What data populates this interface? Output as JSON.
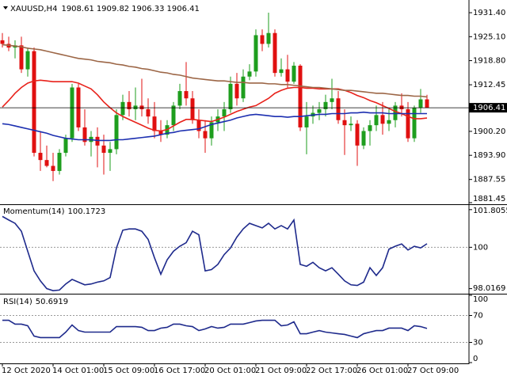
{
  "chart_data": [
    {
      "type": "candlestick",
      "header": {
        "symbol": "XAUUSD,H4",
        "values": [
          1908.61,
          1909.82,
          1906.33,
          1906.41
        ]
      },
      "x": [
        "12 Oct 2020",
        null,
        null,
        null,
        null,
        null,
        null,
        null,
        "14 Oct 01:00",
        null,
        null,
        null,
        null,
        null,
        null,
        null,
        "15 Oct 09:00",
        null,
        null,
        null,
        null,
        null,
        null,
        null,
        "16 Oct 17:00",
        null,
        null,
        null,
        null,
        null,
        null,
        null,
        "20 Oct 01:00",
        null,
        null,
        null,
        null,
        null,
        null,
        null,
        "21 Oct 09:00",
        null,
        null,
        null,
        null,
        null,
        null,
        null,
        "22 Oct 17:00",
        null,
        null,
        null,
        null,
        null,
        null,
        null,
        "26 Oct 01:00",
        null,
        null,
        null,
        null,
        null,
        null,
        null,
        "27 Oct 09:00",
        null,
        null,
        null
      ],
      "open": [
        1924.15,
        1923.2,
        1922.24,
        1922.81,
        1916.51,
        1921.29,
        1894.56,
        1892.66,
        1891.12,
        1889.79,
        1894.56,
        1898.38,
        1911.74,
        1901.24,
        1897.42,
        1898.76,
        1896.47,
        1894.56,
        1895.52,
        1904.49,
        1907.92,
        1906.02,
        1906.97,
        1906.02,
        1904.11,
        1900.29,
        1899.33,
        1901.82,
        1906.97,
        1910.79,
        1908.88,
        1903.15,
        1900.29,
        1898.38,
        1902.58,
        1904.11,
        1906.02,
        1912.7,
        1908.88,
        1914.6,
        1915.94,
        1925.49,
        1923.2,
        1926.06,
        1915.56,
        1916.51,
        1913.27,
        1917.47,
        1901.24,
        1904.11,
        1905.06,
        1906.02,
        1907.92,
        1908.88,
        1903.15,
        1901.82,
        1902.2,
        1896.47,
        1900.29,
        1901.82,
        1904.49,
        1902.2,
        1903.15,
        1906.97,
        1906.02,
        1898.38,
        1906.4,
        1908.61
      ],
      "high": [
        1926.06,
        1925.1,
        1924.15,
        1925.1,
        1922.24,
        1922.24,
        1900.29,
        1896.47,
        1894.56,
        1895.52,
        1899.33,
        1912.7,
        1912.7,
        1906.02,
        1900.29,
        1901.24,
        1899.33,
        1897.42,
        1906.02,
        1909.83,
        1910.79,
        1911.74,
        1914.03,
        1908.88,
        1907.92,
        1903.15,
        1903.15,
        1907.92,
        1912.7,
        1918.42,
        1910.79,
        1906.02,
        1903.15,
        1904.11,
        1906.02,
        1907.92,
        1914.6,
        1915.56,
        1916.51,
        1917.85,
        1927.01,
        1927.01,
        1931.4,
        1927.01,
        1919.38,
        1920.33,
        1918.42,
        1917.85,
        1907.92,
        1906.97,
        1907.92,
        1909.83,
        1914.03,
        1910.79,
        1906.02,
        1904.11,
        1903.15,
        1901.24,
        1903.15,
        1906.97,
        1907.92,
        1906.02,
        1907.92,
        1910.21,
        1907.92,
        1906.97,
        1911.36,
        1909.82
      ],
      "low": [
        1922.24,
        1921.29,
        1919.38,
        1915.56,
        1914.6,
        1893.61,
        1889.79,
        1890.75,
        1887.12,
        1888.84,
        1893.61,
        1897.42,
        1900.29,
        1896.47,
        1893.61,
        1890.75,
        1888.84,
        1889.79,
        1894.18,
        1903.15,
        1904.11,
        1903.15,
        1904.11,
        1902.2,
        1898.38,
        1897.42,
        1898.38,
        1900.29,
        1906.02,
        1906.97,
        1902.2,
        1898.38,
        1894.56,
        1896.47,
        1900.29,
        1900.29,
        1905.06,
        1906.97,
        1907.92,
        1913.65,
        1914.6,
        1921.29,
        1922.24,
        1914.6,
        1914.6,
        1911.74,
        1912.7,
        1900.29,
        1894.18,
        1902.2,
        1903.15,
        1904.11,
        1906.02,
        1902.2,
        1893.99,
        1900.29,
        1891.12,
        1895.52,
        1896.47,
        1900.29,
        1899.33,
        1900.29,
        1901.24,
        1904.11,
        1897.42,
        1897.42,
        1905.06,
        1906.33
      ],
      "close": [
        1923.2,
        1922.24,
        1922.81,
        1916.51,
        1921.29,
        1894.56,
        1892.66,
        1891.12,
        1889.79,
        1894.56,
        1898.38,
        1911.74,
        1901.24,
        1897.42,
        1898.76,
        1896.47,
        1894.56,
        1895.52,
        1904.49,
        1907.92,
        1906.02,
        1906.97,
        1906.02,
        1904.11,
        1900.29,
        1899.33,
        1901.82,
        1906.97,
        1910.79,
        1908.88,
        1903.15,
        1900.29,
        1898.38,
        1902.58,
        1904.11,
        1906.02,
        1912.7,
        1908.88,
        1914.6,
        1915.94,
        1925.49,
        1923.2,
        1926.06,
        1915.56,
        1916.51,
        1913.27,
        1917.47,
        1901.24,
        1904.11,
        1905.06,
        1906.02,
        1907.92,
        1908.88,
        1903.15,
        1901.82,
        1902.2,
        1896.47,
        1900.29,
        1901.82,
        1904.49,
        1902.2,
        1903.15,
        1906.97,
        1906.02,
        1898.38,
        1906.4,
        1908.61,
        1906.41
      ],
      "up_color": "#1e9e1e",
      "down_color": "#e01010",
      "series": [
        {
          "color": "#e8221b",
          "values": [
            1906.59,
            1908.31,
            1910.21,
            1911.74,
            1912.89,
            1913.46,
            1913.65,
            1913.46,
            1913.27,
            1913.27,
            1913.27,
            1913.27,
            1912.89,
            1912.12,
            1911.36,
            1909.83,
            1907.92,
            1906.4,
            1905.06,
            1904.11,
            1903.34,
            1902.58,
            1901.82,
            1901.05,
            1900.48,
            1900.29,
            1900.67,
            1901.63,
            1902.58,
            1903.34,
            1903.34,
            1903.15,
            1902.96,
            1902.77,
            1903.34,
            1903.92,
            1904.68,
            1905.44,
            1906.02,
            1906.59,
            1906.97,
            1907.92,
            1908.88,
            1910.21,
            1910.98,
            1911.55,
            1911.74,
            1911.74,
            1911.55,
            1911.55,
            1911.36,
            1911.36,
            1911.36,
            1911.36,
            1910.98,
            1910.41,
            1909.64,
            1909.07,
            1908.31,
            1907.73,
            1906.97,
            1906.21,
            1905.44,
            1904.87,
            1904.11,
            1903.53,
            1903.53,
            1903.72
          ]
        },
        {
          "color": "#9c6646",
          "values": [
            1923.0,
            1922.81,
            1922.62,
            1922.43,
            1922.05,
            1921.86,
            1921.67,
            1921.29,
            1920.9,
            1920.52,
            1920.14,
            1919.76,
            1919.38,
            1919.19,
            1919.0,
            1918.61,
            1918.42,
            1918.23,
            1917.85,
            1917.66,
            1917.28,
            1917.09,
            1916.71,
            1916.51,
            1916.13,
            1915.75,
            1915.56,
            1915.18,
            1914.99,
            1914.6,
            1914.22,
            1914.03,
            1913.84,
            1913.65,
            1913.46,
            1913.46,
            1913.27,
            1913.08,
            1913.08,
            1912.89,
            1912.89,
            1912.89,
            1912.7,
            1912.7,
            1912.51,
            1912.51,
            1912.31,
            1912.12,
            1911.93,
            1911.74,
            1911.74,
            1911.55,
            1911.36,
            1911.17,
            1910.98,
            1910.98,
            1910.79,
            1910.6,
            1910.41,
            1910.21,
            1910.21,
            1910.02,
            1909.83,
            1909.64,
            1909.64,
            1909.45,
            1909.45,
            1909.26
          ]
        },
        {
          "color": "#1c2fb0",
          "values": [
            1902.2,
            1902.01,
            1901.63,
            1901.24,
            1900.86,
            1900.48,
            1900.1,
            1899.72,
            1899.14,
            1898.76,
            1898.38,
            1898.19,
            1898.0,
            1898.0,
            1898.0,
            1897.81,
            1897.81,
            1897.81,
            1898.0,
            1898.0,
            1898.19,
            1898.38,
            1898.57,
            1898.76,
            1898.95,
            1899.33,
            1899.72,
            1899.91,
            1900.29,
            1900.48,
            1900.67,
            1900.86,
            1901.43,
            1902.01,
            1902.39,
            1902.77,
            1903.15,
            1903.72,
            1904.11,
            1904.49,
            1904.68,
            1904.49,
            1904.3,
            1904.11,
            1904.11,
            1903.92,
            1904.11,
            1904.11,
            1904.3,
            1904.49,
            1904.68,
            1904.68,
            1904.87,
            1904.87,
            1904.87,
            1905.06,
            1905.06,
            1905.25,
            1905.06,
            1905.06,
            1905.06,
            1904.87,
            1904.87,
            1904.87,
            1904.87,
            1904.87,
            1904.87,
            1904.87
          ]
        }
      ],
      "last_price": 1906.41,
      "ylim": [
        1881.45,
        1933.7
      ],
      "yticks": [
        {
          "value": 1931.4,
          "label": "1931.40"
        },
        {
          "value": 1925.1,
          "label": "1925.10"
        },
        {
          "value": 1918.8,
          "label": "1918.80"
        },
        1912.45,
        {
          "value": 1900.2,
          "label": "1900.20"
        },
        {
          "value": 1893.9,
          "label": "1893.90"
        },
        1887.55,
        1881.45
      ]
    },
    {
      "type": "line",
      "title": "Momentum(14)",
      "current": 100.1723,
      "color": "#1e2a8c",
      "values": [
        101.48,
        101.31,
        101.15,
        100.77,
        99.81,
        98.87,
        98.39,
        98.02,
        97.92,
        97.95,
        98.24,
        98.46,
        98.33,
        98.2,
        98.24,
        98.33,
        98.39,
        98.55,
        99.97,
        100.82,
        100.88,
        100.88,
        100.77,
        100.38,
        99.5,
        98.71,
        99.4,
        99.81,
        100.05,
        100.22,
        100.77,
        100.6,
        98.87,
        98.93,
        99.18,
        99.65,
        99.97,
        100.49,
        100.88,
        101.15,
        101.04,
        100.93,
        101.15,
        100.88,
        101.04,
        100.88,
        101.31,
        99.18,
        99.09,
        99.28,
        99.02,
        98.87,
        99.02,
        98.71,
        98.39,
        98.2,
        98.17,
        98.33,
        99.02,
        98.65,
        99.02,
        99.91,
        100.05,
        100.16,
        99.87,
        100.05,
        99.97,
        100.17
      ],
      "ylim": [
        97.85,
        101.95
      ],
      "yticks": [
        101.8055,
        100,
        98.0169
      ],
      "levels": [
        100
      ]
    },
    {
      "type": "line",
      "title": "RSI(14)",
      "current": 50.6919,
      "color": "#1e2a8c",
      "values": [
        62.9,
        62.9,
        57.1,
        57.1,
        54.7,
        39.4,
        37.1,
        37.1,
        37.1,
        37.1,
        45.3,
        55.9,
        47.6,
        45.3,
        45.3,
        45.3,
        45.3,
        45.3,
        53.5,
        53.5,
        53.5,
        53.5,
        52.4,
        47.6,
        47.6,
        51.2,
        52.4,
        57.1,
        57.1,
        54.7,
        53.5,
        47.6,
        50.0,
        53.5,
        51.2,
        52.4,
        57.1,
        57.1,
        57.1,
        59.4,
        61.8,
        62.9,
        62.9,
        62.9,
        54.7,
        55.9,
        60.6,
        42.9,
        42.9,
        45.3,
        47.6,
        45.3,
        44.1,
        42.9,
        41.8,
        39.4,
        37.1,
        42.9,
        45.3,
        47.6,
        47.6,
        51.2,
        51.2,
        51.2,
        47.6,
        54.7,
        53.5,
        50.69
      ],
      "ylim": [
        0,
        100
      ],
      "yticks": [
        100,
        70,
        30,
        0
      ],
      "levels": [
        70,
        30
      ]
    }
  ]
}
